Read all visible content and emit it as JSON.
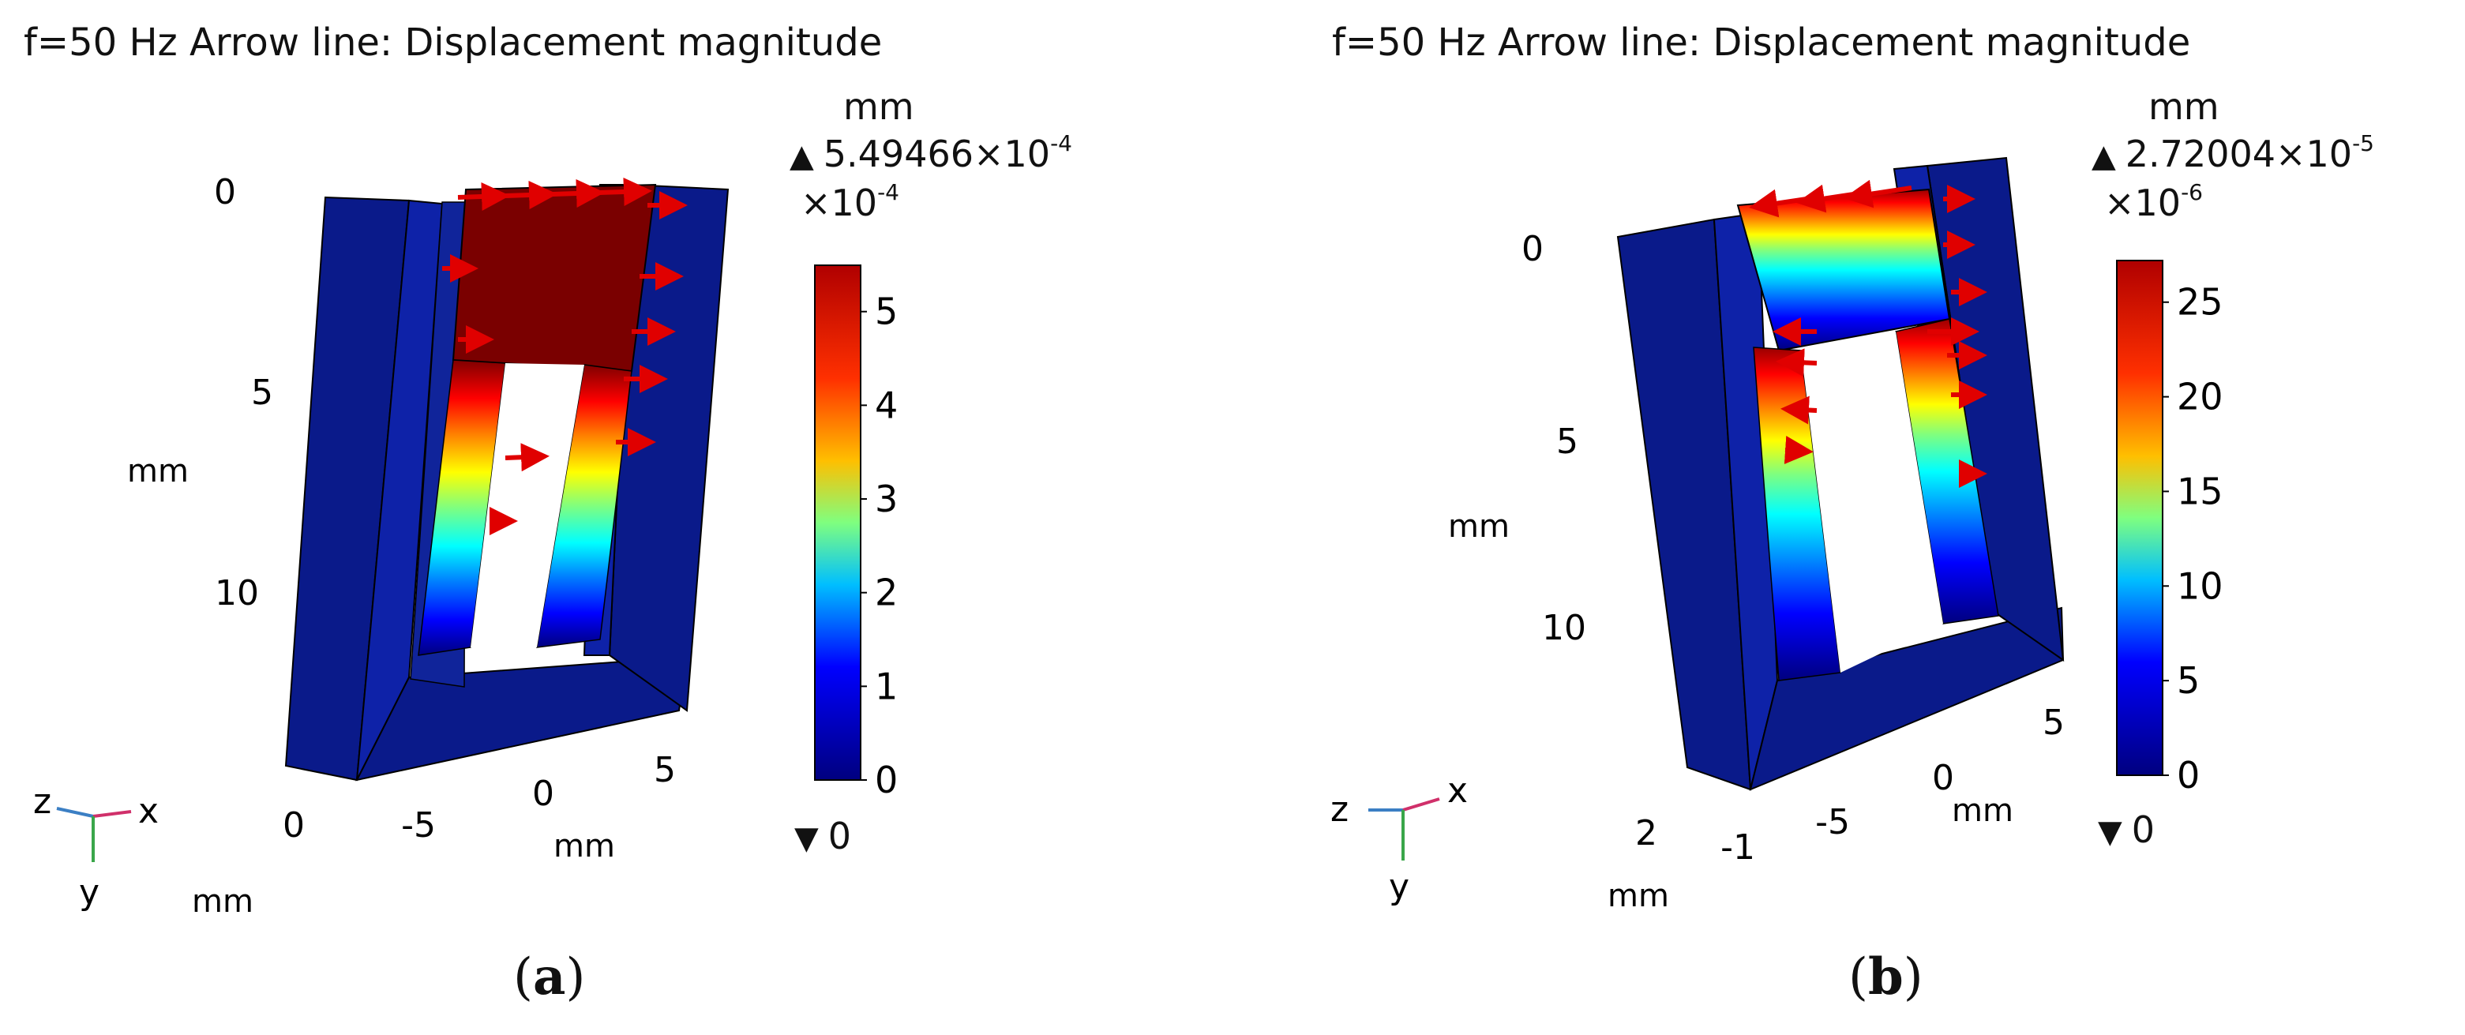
{
  "colormap": [
    "#00007f",
    "#0000ff",
    "#007fff",
    "#00ffff",
    "#7fff7f",
    "#ffff00",
    "#ff7f00",
    "#ff0000",
    "#7f0000"
  ],
  "panels": [
    {
      "id": "a",
      "title": "f=50 Hz Arrow line: Displacement magnitude",
      "caption_label": "a",
      "colorbar": {
        "unit": "mm",
        "max_value": "5.49466×10",
        "max_exp": "-4",
        "scale_prefix": "×10",
        "scale_exp": "-4",
        "ticks": [
          "5",
          "4",
          "3",
          "2",
          "1",
          "0"
        ],
        "tick_values": [
          5,
          4,
          3,
          2,
          1,
          0
        ],
        "range": [
          0,
          5.49466
        ],
        "min_value": "0"
      },
      "axes": {
        "vertical_ticks": [
          "0",
          "5",
          "10"
        ],
        "vertical_unit": "mm",
        "bottom_ticks": [
          "-5",
          "0",
          "5"
        ],
        "bottom_unit": "mm",
        "depth_ticks": [
          "0"
        ],
        "depth_unit": "mm"
      },
      "triad": {
        "z": "z",
        "x": "x",
        "y": "y"
      }
    },
    {
      "id": "b",
      "title": "f=50 Hz Arrow line: Displacement magnitude",
      "caption_label": "b",
      "colorbar": {
        "unit": "mm",
        "max_value": "2.72004×10",
        "max_exp": "-5",
        "scale_prefix": "×10",
        "scale_exp": "-6",
        "ticks": [
          "25",
          "20",
          "15",
          "10",
          "5",
          "0"
        ],
        "tick_values": [
          25,
          20,
          15,
          10,
          5,
          0
        ],
        "range": [
          0,
          27.2004
        ],
        "min_value": "0"
      },
      "axes": {
        "vertical_ticks": [
          "0",
          "5",
          "10"
        ],
        "vertical_unit": "mm",
        "bottom_ticks": [
          "-5",
          "0",
          "5"
        ],
        "bottom_unit": "mm",
        "depth_ticks": [
          "2",
          "-1"
        ],
        "depth_unit": "mm"
      },
      "triad": {
        "z": "z",
        "x": "x",
        "y": "y"
      }
    }
  ],
  "chart_data": [
    {
      "type": "heatmap",
      "title": "f=50 Hz Arrow line: Displacement magnitude",
      "quantity": "Displacement magnitude",
      "unit": "mm",
      "frequency": "f=50 Hz",
      "color_range": [
        0,
        0.000549466
      ],
      "max": 0.000549466,
      "min": 0,
      "colorbar_ticks_x1e-4": [
        0,
        1,
        2,
        3,
        4,
        5
      ]
    },
    {
      "type": "heatmap",
      "title": "f=50 Hz Arrow line: Displacement magnitude",
      "quantity": "Displacement magnitude",
      "unit": "mm",
      "frequency": "f=50 Hz",
      "color_range": [
        0,
        2.72004e-05
      ],
      "max": 2.72004e-05,
      "min": 0,
      "colorbar_ticks_x1e-6": [
        0,
        5,
        10,
        15,
        20,
        25
      ]
    }
  ]
}
